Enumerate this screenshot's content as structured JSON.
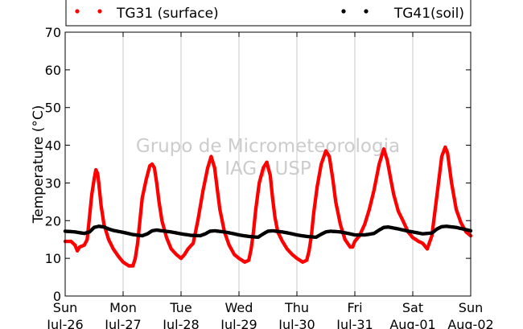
{
  "chart_data": {
    "type": "scatter",
    "title": "",
    "xlabel": "",
    "ylabel": "Temperature (°C)",
    "ylim": [
      0,
      70
    ],
    "yticks": [
      0,
      10,
      20,
      30,
      40,
      50,
      60,
      70
    ],
    "xlim": [
      0,
      7
    ],
    "x_unit": "days since Sun Jul-26 00:00",
    "xticks": [
      {
        "day": "Sun",
        "date": "Jul-26"
      },
      {
        "day": "Mon",
        "date": "Jul-27"
      },
      {
        "day": "Tue",
        "date": "Jul-28"
      },
      {
        "day": "Wed",
        "date": "Jul-29"
      },
      {
        "day": "Thu",
        "date": "Jul-30"
      },
      {
        "day": "Fri",
        "date": "Jul-31"
      },
      {
        "day": "Sat",
        "date": "Aug-01"
      },
      {
        "day": "Sun",
        "date": "Aug-02"
      }
    ],
    "grid": "vertical",
    "legend_position": "top",
    "watermark": [
      "Grupo de Micrometeorologia",
      "IAG / USP"
    ],
    "series": [
      {
        "name": "TG31 (surface)",
        "color": "#ff0000",
        "points": [
          [
            0.0,
            14.5
          ],
          [
            0.1,
            14.5
          ],
          [
            0.17,
            13.5
          ],
          [
            0.21,
            12.0
          ],
          [
            0.25,
            13.0
          ],
          [
            0.33,
            13.5
          ],
          [
            0.38,
            15.0
          ],
          [
            0.42,
            21.0
          ],
          [
            0.46,
            27.0
          ],
          [
            0.5,
            31.0
          ],
          [
            0.53,
            33.5
          ],
          [
            0.56,
            32.5
          ],
          [
            0.58,
            30.0
          ],
          [
            0.62,
            24.0
          ],
          [
            0.67,
            19.0
          ],
          [
            0.75,
            15.0
          ],
          [
            0.83,
            12.5
          ],
          [
            0.92,
            10.5
          ],
          [
            1.0,
            9.0
          ],
          [
            1.1,
            8.0
          ],
          [
            1.17,
            8.0
          ],
          [
            1.21,
            10.0
          ],
          [
            1.25,
            14.0
          ],
          [
            1.29,
            20.0
          ],
          [
            1.33,
            26.0
          ],
          [
            1.4,
            31.0
          ],
          [
            1.46,
            34.5
          ],
          [
            1.5,
            35.0
          ],
          [
            1.54,
            34.0
          ],
          [
            1.58,
            30.0
          ],
          [
            1.62,
            25.0
          ],
          [
            1.67,
            20.0
          ],
          [
            1.75,
            15.5
          ],
          [
            1.83,
            12.5
          ],
          [
            1.92,
            11.0
          ],
          [
            2.0,
            10.0
          ],
          [
            2.06,
            11.0
          ],
          [
            2.12,
            12.5
          ],
          [
            2.21,
            14.0
          ],
          [
            2.29,
            20.0
          ],
          [
            2.38,
            28.0
          ],
          [
            2.46,
            34.0
          ],
          [
            2.52,
            37.0
          ],
          [
            2.58,
            34.0
          ],
          [
            2.62,
            29.0
          ],
          [
            2.67,
            23.0
          ],
          [
            2.75,
            17.0
          ],
          [
            2.83,
            13.5
          ],
          [
            2.92,
            11.0
          ],
          [
            3.0,
            10.0
          ],
          [
            3.1,
            9.0
          ],
          [
            3.17,
            9.5
          ],
          [
            3.21,
            12.5
          ],
          [
            3.25,
            17.0
          ],
          [
            3.29,
            23.0
          ],
          [
            3.35,
            30.0
          ],
          [
            3.42,
            34.0
          ],
          [
            3.48,
            35.5
          ],
          [
            3.54,
            32.0
          ],
          [
            3.58,
            26.0
          ],
          [
            3.62,
            21.0
          ],
          [
            3.67,
            17.0
          ],
          [
            3.75,
            14.5
          ],
          [
            3.83,
            12.5
          ],
          [
            3.92,
            11.0
          ],
          [
            4.0,
            10.0
          ],
          [
            4.1,
            9.0
          ],
          [
            4.17,
            9.5
          ],
          [
            4.21,
            12.0
          ],
          [
            4.25,
            16.0
          ],
          [
            4.29,
            22.0
          ],
          [
            4.35,
            29.0
          ],
          [
            4.42,
            35.0
          ],
          [
            4.5,
            38.5
          ],
          [
            4.56,
            37.0
          ],
          [
            4.62,
            31.0
          ],
          [
            4.67,
            25.0
          ],
          [
            4.75,
            19.0
          ],
          [
            4.83,
            15.0
          ],
          [
            4.92,
            13.0
          ],
          [
            4.96,
            13.0
          ],
          [
            5.0,
            14.5
          ],
          [
            5.08,
            16.0
          ],
          [
            5.17,
            19.0
          ],
          [
            5.25,
            23.0
          ],
          [
            5.33,
            28.0
          ],
          [
            5.42,
            35.0
          ],
          [
            5.5,
            39.0
          ],
          [
            5.56,
            36.0
          ],
          [
            5.62,
            31.0
          ],
          [
            5.67,
            27.0
          ],
          [
            5.75,
            22.5
          ],
          [
            5.83,
            20.0
          ],
          [
            5.92,
            17.0
          ],
          [
            6.0,
            15.5
          ],
          [
            6.1,
            14.5
          ],
          [
            6.17,
            14.0
          ],
          [
            6.25,
            12.5
          ],
          [
            6.33,
            16.0
          ],
          [
            6.42,
            27.0
          ],
          [
            6.5,
            37.0
          ],
          [
            6.56,
            39.5
          ],
          [
            6.6,
            38.0
          ],
          [
            6.67,
            30.0
          ],
          [
            6.75,
            23.0
          ],
          [
            6.83,
            19.5
          ],
          [
            6.92,
            17.0
          ],
          [
            7.0,
            16.0
          ]
        ]
      },
      {
        "name": "TG41(soil)",
        "color": "#000000",
        "points": [
          [
            0.0,
            17.2
          ],
          [
            0.17,
            17.0
          ],
          [
            0.33,
            16.6
          ],
          [
            0.42,
            17.0
          ],
          [
            0.5,
            18.2
          ],
          [
            0.58,
            18.5
          ],
          [
            0.67,
            18.3
          ],
          [
            0.75,
            17.8
          ],
          [
            0.83,
            17.4
          ],
          [
            1.0,
            16.9
          ],
          [
            1.17,
            16.3
          ],
          [
            1.33,
            16.0
          ],
          [
            1.42,
            16.5
          ],
          [
            1.5,
            17.3
          ],
          [
            1.58,
            17.5
          ],
          [
            1.67,
            17.3
          ],
          [
            1.83,
            17.0
          ],
          [
            2.0,
            16.5
          ],
          [
            2.17,
            16.1
          ],
          [
            2.33,
            16.0
          ],
          [
            2.42,
            16.5
          ],
          [
            2.5,
            17.2
          ],
          [
            2.58,
            17.3
          ],
          [
            2.75,
            17.0
          ],
          [
            2.92,
            16.5
          ],
          [
            3.0,
            16.2
          ],
          [
            3.17,
            15.8
          ],
          [
            3.33,
            15.6
          ],
          [
            3.42,
            16.5
          ],
          [
            3.5,
            17.2
          ],
          [
            3.58,
            17.3
          ],
          [
            3.75,
            17.0
          ],
          [
            3.92,
            16.5
          ],
          [
            4.0,
            16.2
          ],
          [
            4.17,
            15.8
          ],
          [
            4.33,
            15.6
          ],
          [
            4.42,
            16.4
          ],
          [
            4.5,
            17.0
          ],
          [
            4.58,
            17.2
          ],
          [
            4.75,
            17.0
          ],
          [
            4.92,
            16.5
          ],
          [
            5.0,
            16.2
          ],
          [
            5.17,
            16.2
          ],
          [
            5.33,
            16.6
          ],
          [
            5.42,
            17.5
          ],
          [
            5.5,
            18.2
          ],
          [
            5.58,
            18.3
          ],
          [
            5.75,
            17.8
          ],
          [
            5.92,
            17.2
          ],
          [
            6.0,
            17.0
          ],
          [
            6.17,
            16.5
          ],
          [
            6.33,
            16.7
          ],
          [
            6.42,
            17.8
          ],
          [
            6.5,
            18.4
          ],
          [
            6.58,
            18.5
          ],
          [
            6.75,
            18.2
          ],
          [
            6.92,
            17.6
          ],
          [
            7.0,
            17.3
          ]
        ]
      }
    ]
  }
}
